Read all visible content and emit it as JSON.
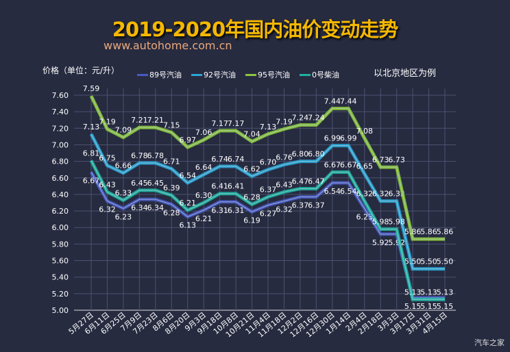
{
  "chart_data": {
    "type": "line",
    "title": "2019-2020年国内油价变动走势",
    "subtitle": "www.autohome.com.cn",
    "ylabel": "价格（单位：元/升）",
    "note": "以北京地区为例",
    "ylim": [
      5.0,
      7.6
    ],
    "yticks": [
      "5.00",
      "5.20",
      "5.40",
      "5.60",
      "5.80",
      "6.00",
      "6.20",
      "6.40",
      "6.60",
      "6.80",
      "7.00",
      "7.20",
      "7.40",
      "7.60"
    ],
    "grid": true,
    "legend": "top",
    "categories": [
      "5月27日",
      "6月11日",
      "6月25日",
      "7月9日",
      "7月23日",
      "8月6日",
      "8月20日",
      "9月3日",
      "9月18日",
      "10月8日",
      "10月21日",
      "11月4日",
      "11月18日",
      "12月2日",
      "12月16日",
      "12月30日",
      "1月14日",
      "2月4日",
      "2月18日",
      "3月3日",
      "3月17日",
      "3月31日",
      "4月15日"
    ],
    "series": [
      {
        "name": "89号汽油",
        "color": "#4a5ac4",
        "values": [
          6.67,
          6.32,
          6.23,
          6.34,
          6.34,
          6.28,
          6.13,
          6.21,
          6.31,
          6.31,
          6.19,
          6.27,
          6.32,
          6.37,
          6.37,
          6.54,
          6.54,
          6.23,
          5.92,
          5.92,
          5.15,
          5.15,
          5.15
        ]
      },
      {
        "name": "92号汽油",
        "color": "#2aa6d6",
        "values": [
          7.13,
          6.75,
          6.66,
          6.78,
          6.78,
          6.71,
          6.54,
          6.64,
          6.74,
          6.74,
          6.62,
          6.7,
          6.76,
          6.8,
          6.8,
          6.99,
          6.99,
          6.65,
          6.32,
          6.32,
          5.5,
          5.5,
          5.5
        ]
      },
      {
        "name": "95号汽油",
        "color": "#8cc63a",
        "values": [
          7.59,
          7.19,
          7.09,
          7.21,
          7.21,
          7.15,
          6.97,
          7.06,
          7.17,
          7.17,
          7.04,
          7.13,
          7.19,
          7.24,
          7.24,
          7.44,
          7.44,
          7.08,
          6.73,
          6.73,
          5.86,
          5.86,
          5.86
        ]
      },
      {
        "name": "0号柴油",
        "color": "#1db3a0",
        "values": [
          6.81,
          6.43,
          6.33,
          6.45,
          6.45,
          6.39,
          6.21,
          6.3,
          6.41,
          6.41,
          6.28,
          6.37,
          6.43,
          6.47,
          6.47,
          6.67,
          6.67,
          6.32,
          5.98,
          5.98,
          5.13,
          5.13,
          5.13
        ]
      }
    ]
  },
  "watermark": "汽车之家"
}
